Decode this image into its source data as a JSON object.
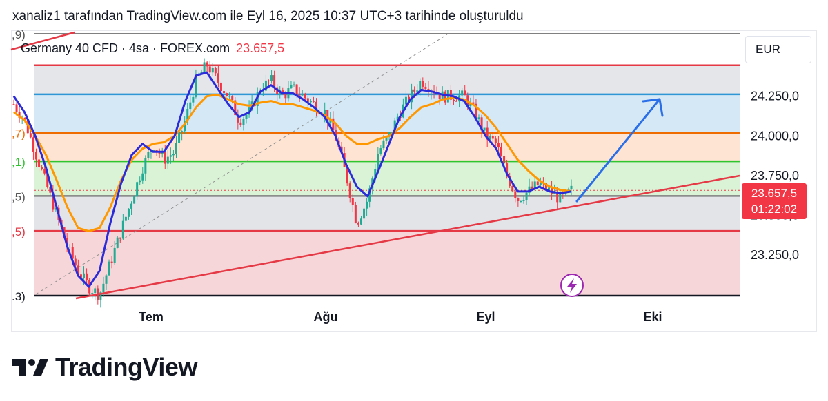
{
  "caption": "xanaliz1 tarafından TradingView.com ile Eyl 16, 2025 10:37 UTC+3 tarihinde oluşturuldu",
  "legend": {
    "symbol": "Germany 40 CFD · 4sa · FOREX.com",
    "price": "23.657,5"
  },
  "currency": "EUR",
  "price_badge": {
    "price": "23.657,5",
    "countdown": "01:22:02"
  },
  "brand": {
    "name": "TradingView",
    "logo_icon": "tradingview-logo-icon"
  },
  "colors": {
    "up": "#22ab94",
    "down": "#f23645",
    "fast_ma": "#2b2bd9",
    "slow_ma": "#ff9800",
    "fib_red": "#e53946",
    "fib_blue": "#2f96d6",
    "fib_orange": "#ef6c00",
    "fib_green": "#2ec52e",
    "fib_gray": "#808080"
  },
  "chart_data": {
    "type": "candlestick",
    "instrument": "Germany 40 CFD",
    "timeframe": "4sa",
    "currency": "EUR",
    "last_price": 23657.5,
    "x_tick_labels": [
      "Tem",
      "Ağu",
      "Eyl",
      "Eki"
    ],
    "y_tick_labels": [
      "24.250,0",
      "24.000,0",
      "23.750,0",
      "23.500,0",
      "23.250,0"
    ],
    "y_ticks": [
      24250,
      24000,
      23750,
      23500,
      23250
    ],
    "ylim": [
      23000,
      24450
    ],
    "fib_levels": [
      {
        "label": ",9)",
        "value": 24440,
        "color": "#808080"
      },
      {
        "label": "",
        "value": 24445,
        "color": "#e53946"
      },
      {
        "label": "",
        "value": 24262,
        "color": "#2f96d6"
      },
      {
        "label": ",7)",
        "value": 24020,
        "color": "#ef6c00"
      },
      {
        "label": ",1)",
        "value": 23840,
        "color": "#2ec52e"
      },
      {
        "label": ",5)",
        "value": 23622,
        "color": "#808080"
      },
      {
        "label": ",5)",
        "value": 23402,
        "color": "#e53946"
      },
      {
        "label": ".3)",
        "value": 22900,
        "color": "#131722"
      }
    ],
    "close_series": [
      24200,
      24100,
      23900,
      23700,
      23500,
      23300,
      23150,
      23050,
      23000,
      23200,
      23400,
      23600,
      23800,
      23950,
      23850,
      23900,
      24100,
      24350,
      24450,
      24350,
      24250,
      24100,
      24150,
      24300,
      24350,
      24250,
      24300,
      24250,
      24200,
      24150,
      24000,
      23750,
      23450,
      23600,
      23900,
      24000,
      24150,
      24250,
      24350,
      24300,
      24250,
      24250,
      24250,
      24150,
      24000,
      23950,
      23750,
      23600,
      23650,
      23700,
      23650,
      23600,
      23657.5
    ],
    "fast_ma": [
      24250,
      24150,
      24000,
      23800,
      23550,
      23300,
      23120,
      23050,
      23150,
      23450,
      23700,
      23880,
      23950,
      23900,
      23900,
      24000,
      24220,
      24380,
      24400,
      24300,
      24200,
      24120,
      24150,
      24280,
      24320,
      24270,
      24270,
      24230,
      24180,
      24120,
      24000,
      23820,
      23680,
      23620,
      23780,
      23950,
      24120,
      24230,
      24290,
      24280,
      24260,
      24250,
      24220,
      24120,
      24000,
      23920,
      23760,
      23650,
      23650,
      23680,
      23650,
      23640,
      23650
    ],
    "slow_ma": [
      24150,
      24100,
      24000,
      23880,
      23720,
      23550,
      23420,
      23400,
      23420,
      23550,
      23720,
      23850,
      23920,
      23950,
      23960,
      24000,
      24080,
      24180,
      24250,
      24260,
      24230,
      24200,
      24190,
      24210,
      24220,
      24200,
      24200,
      24180,
      24160,
      24130,
      24080,
      24000,
      23950,
      23950,
      23980,
      24000,
      24050,
      24120,
      24180,
      24200,
      24230,
      24240,
      24230,
      24190,
      24130,
      24050,
      23950,
      23850,
      23780,
      23720,
      23680,
      23660,
      23650
    ],
    "annotations": [
      "ascending trendline",
      "projected upward arrow"
    ],
    "grid": false
  }
}
